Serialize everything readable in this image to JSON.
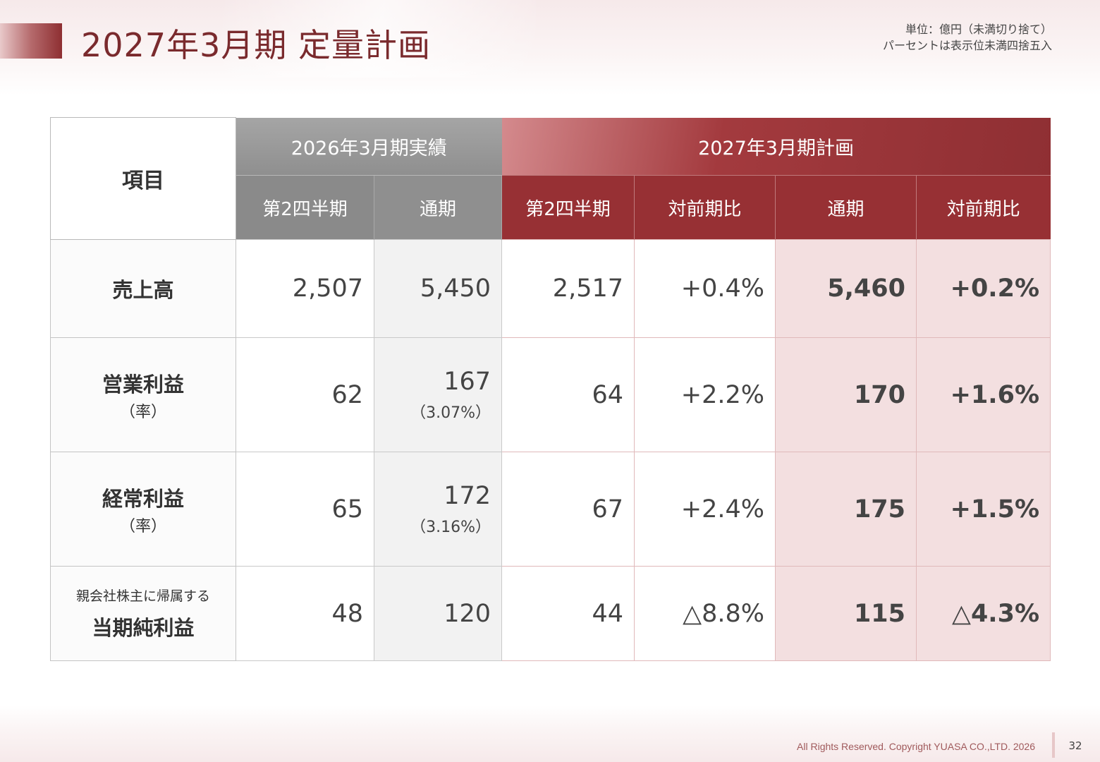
{
  "header": {
    "title": "2027年3月期  定量計画",
    "unit_line1": "単位：億円（未満切り捨て）",
    "unit_line2": "パーセントは表示位未満四捨五入"
  },
  "table": {
    "item_header": "項目",
    "actual_group": "2026年3月期実績",
    "plan_group": "2027年3月期計画",
    "actual_cols": [
      "第2四半期",
      "通期"
    ],
    "plan_cols": [
      "第2四半期",
      "対前期比",
      "通期",
      "対前期比"
    ],
    "rows": [
      {
        "label_main": "売上高",
        "actual_q2": "2,507",
        "actual_full": "5,450",
        "plan_q2": "2,517",
        "plan_q2_yoy": "+0.4%",
        "plan_full": "5,460",
        "plan_full_yoy": "+0.2%"
      },
      {
        "label_main": "営業利益",
        "label_sub": "（率）",
        "actual_q2": "62",
        "actual_full": "167",
        "actual_full_rate": "（3.07%）",
        "plan_q2": "64",
        "plan_q2_yoy": "+2.2%",
        "plan_full": "170",
        "plan_full_yoy": "+1.6%"
      },
      {
        "label_main": "経常利益",
        "label_sub": "（率）",
        "actual_q2": "65",
        "actual_full": "172",
        "actual_full_rate": "（3.16%）",
        "plan_q2": "67",
        "plan_q2_yoy": "+2.4%",
        "plan_full": "175",
        "plan_full_yoy": "+1.5%"
      },
      {
        "label_small": "親会社株主に帰属する",
        "label_main": "当期純利益",
        "actual_q2": "48",
        "actual_full": "120",
        "plan_q2": "44",
        "plan_q2_yoy": "△8.8%",
        "plan_full": "115",
        "plan_full_yoy": "△4.3%"
      }
    ]
  },
  "footer": {
    "copyright": "All Rights Reserved. Copyright  YUASA CO.,LTD. 2026",
    "page": "32"
  },
  "colors": {
    "accent": "#973034",
    "gray_header": "#8a8a8a",
    "pink_highlight": "#f3dfe0"
  }
}
